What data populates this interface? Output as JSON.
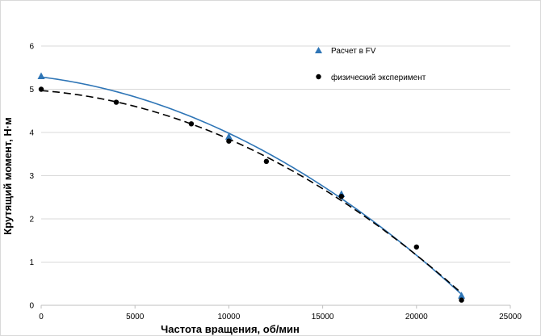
{
  "chart_data": {
    "type": "scatter",
    "xlabel": "Частота вращения, об/мин",
    "ylabel": "Крутящий момент, Н·м",
    "xlim": [
      0,
      25000
    ],
    "ylim": [
      0,
      6
    ],
    "x_ticks": [
      "0",
      "5000",
      "10000",
      "15000",
      "20000",
      "25000"
    ],
    "y_ticks": [
      "0",
      "1",
      "2",
      "3",
      "4",
      "5",
      "6"
    ],
    "grid": "horizontal",
    "legend_position": "top-right",
    "series": [
      {
        "name": "Расчет в FV",
        "marker": "triangle",
        "color": "#2e75b6",
        "trendline": "solid",
        "points": [
          [
            0,
            5.3
          ],
          [
            10000,
            3.9
          ],
          [
            16000,
            2.57
          ],
          [
            22400,
            0.22
          ]
        ]
      },
      {
        "name": "физический эксперимент",
        "marker": "circle",
        "color": "#000000",
        "trendline": "dashed",
        "points": [
          [
            0,
            5.0
          ],
          [
            4000,
            4.7
          ],
          [
            8000,
            4.2
          ],
          [
            10000,
            3.8
          ],
          [
            12000,
            3.33
          ],
          [
            16000,
            2.52
          ],
          [
            20000,
            1.35
          ],
          [
            22400,
            0.12
          ]
        ]
      }
    ]
  }
}
